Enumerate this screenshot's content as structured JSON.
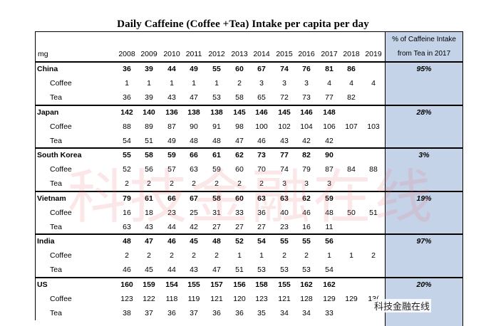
{
  "title": "Daily Caffeine (Coffee +Tea) Intake per capita per day",
  "header": {
    "unit": "mg",
    "years": [
      "2008",
      "2009",
      "2010",
      "2011",
      "2012",
      "2013",
      "2014",
      "2015",
      "2016",
      "2017",
      "2018",
      "2019"
    ],
    "pct_label_line1": "% of Caffeine Intake",
    "pct_label_line2": "from Tea in 2017"
  },
  "countries": [
    {
      "name": "China",
      "pct": "95%",
      "total": [
        "36",
        "39",
        "44",
        "49",
        "55",
        "60",
        "67",
        "74",
        "76",
        "81",
        "86",
        ""
      ],
      "coffee": [
        "1",
        "1",
        "1",
        "1",
        "1",
        "2",
        "3",
        "3",
        "3",
        "4",
        "4",
        "4"
      ],
      "tea": [
        "36",
        "39",
        "43",
        "47",
        "53",
        "58",
        "65",
        "72",
        "73",
        "77",
        "82",
        ""
      ]
    },
    {
      "name": "Japan",
      "pct": "28%",
      "total": [
        "142",
        "140",
        "136",
        "138",
        "138",
        "145",
        "146",
        "145",
        "146",
        "148",
        "",
        ""
      ],
      "coffee": [
        "88",
        "89",
        "87",
        "90",
        "91",
        "98",
        "100",
        "102",
        "104",
        "106",
        "107",
        "103"
      ],
      "tea": [
        "54",
        "51",
        "49",
        "48",
        "48",
        "47",
        "46",
        "43",
        "42",
        "42",
        "",
        ""
      ]
    },
    {
      "name": "South Korea",
      "pct": "3%",
      "total": [
        "55",
        "58",
        "59",
        "66",
        "61",
        "62",
        "73",
        "77",
        "82",
        "90",
        "",
        ""
      ],
      "coffee": [
        "52",
        "56",
        "57",
        "63",
        "59",
        "60",
        "70",
        "74",
        "79",
        "87",
        "84",
        "88"
      ],
      "tea": [
        "2",
        "2",
        "2",
        "2",
        "2",
        "2",
        "2",
        "3",
        "3",
        "3",
        "",
        ""
      ]
    },
    {
      "name": "Vietnam",
      "pct": "19%",
      "total": [
        "79",
        "61",
        "66",
        "67",
        "58",
        "60",
        "63",
        "63",
        "62",
        "59",
        "",
        ""
      ],
      "coffee": [
        "16",
        "18",
        "23",
        "25",
        "31",
        "33",
        "36",
        "40",
        "46",
        "48",
        "50",
        "51"
      ],
      "tea": [
        "63",
        "43",
        "44",
        "42",
        "27",
        "27",
        "27",
        "23",
        "16",
        "11",
        "",
        ""
      ]
    },
    {
      "name": "India",
      "pct": "97%",
      "total": [
        "48",
        "47",
        "46",
        "45",
        "48",
        "52",
        "54",
        "55",
        "55",
        "56",
        "",
        ""
      ],
      "coffee": [
        "2",
        "2",
        "2",
        "2",
        "2",
        "1",
        "1",
        "2",
        "2",
        "1",
        "1",
        "2"
      ],
      "tea": [
        "46",
        "45",
        "44",
        "43",
        "47",
        "51",
        "53",
        "53",
        "53",
        "54",
        "",
        ""
      ]
    },
    {
      "name": "US",
      "pct": "20%",
      "total": [
        "160",
        "159",
        "154",
        "155",
        "157",
        "156",
        "158",
        "155",
        "162",
        "162",
        "",
        ""
      ],
      "coffee": [
        "123",
        "122",
        "118",
        "119",
        "121",
        "120",
        "123",
        "121",
        "128",
        "129",
        "129",
        "13("
      ],
      "tea": [
        "38",
        "37",
        "36",
        "37",
        "36",
        "36",
        "35",
        "34",
        "34",
        "33",
        "",
        ""
      ]
    }
  ],
  "row_labels": {
    "coffee": "Coffee",
    "tea": "Tea"
  },
  "watermark": "科技金融在线",
  "wechat_mark": "科技金融在线"
}
